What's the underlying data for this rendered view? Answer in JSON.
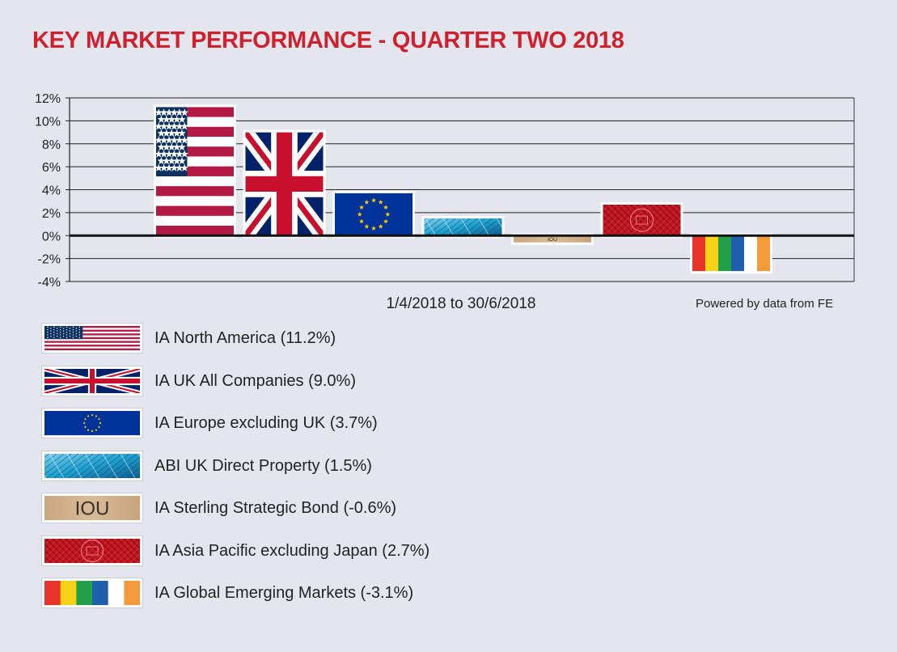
{
  "title": "KEY MARKET PERFORMANCE - QUARTER TWO 2018",
  "chart_data": {
    "type": "bar",
    "x_range_label": "1/4/2018 to 30/6/2018",
    "source": "Powered by data from FE",
    "ylim": [
      -4,
      12
    ],
    "yticks": [
      "12%",
      "10%",
      "8%",
      "6%",
      "4%",
      "2%",
      "0%",
      "-2%",
      "-4%"
    ],
    "grid": true,
    "legend_position": "below",
    "series": [
      {
        "label": "IA North America (11.2%)",
        "value": 11.2,
        "pattern": "usa-flag"
      },
      {
        "label": "IA UK All Companies (9.0%)",
        "value": 9.0,
        "pattern": "uk-flag"
      },
      {
        "label": "IA Europe excluding UK (3.7%)",
        "value": 3.7,
        "pattern": "eu-flag"
      },
      {
        "label": "ABI UK Direct Property (1.5%)",
        "value": 1.5,
        "pattern": "glass-building"
      },
      {
        "label": "IA Sterling Strategic Bond (-0.6%)",
        "value": -0.6,
        "pattern": "iou-note",
        "text": "IOU"
      },
      {
        "label": "IA Asia Pacific excluding Japan (2.7%)",
        "value": 2.7,
        "pattern": "asian-red-pattern"
      },
      {
        "label": "IA Global Emerging Markets (-3.1%)",
        "value": -3.1,
        "pattern": "color-stripes"
      }
    ]
  },
  "colors": {
    "title": "#d0202e",
    "usa_red": "#b31942",
    "usa_blue": "#0a3161",
    "uk_blue": "#012169",
    "uk_red": "#c8102e",
    "eu_blue": "#003399",
    "eu_gold": "#ffcc00",
    "property_blue": "#1fa0cf",
    "iou_tan": "#d8bb98",
    "asia_red": "#c0141f",
    "em_stripes": [
      "#e8332a",
      "#f6d316",
      "#23a047",
      "#1f5fae",
      "#ffffff",
      "#f39a3c"
    ]
  }
}
